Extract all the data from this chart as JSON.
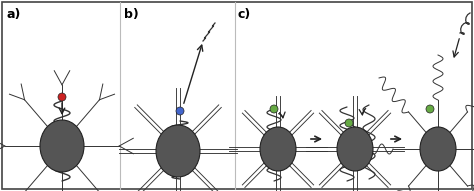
{
  "background_color": "#ffffff",
  "border_color": "#444444",
  "nanoparticle_color": "#555555",
  "label_a": "a)",
  "label_b": "b)",
  "label_c": "c)",
  "label_fontsize": 9,
  "dot_red": "#cc2222",
  "dot_blue": "#4466cc",
  "dot_green": "#66aa44",
  "polymer_color": "#333333",
  "arm_color": "#333333"
}
